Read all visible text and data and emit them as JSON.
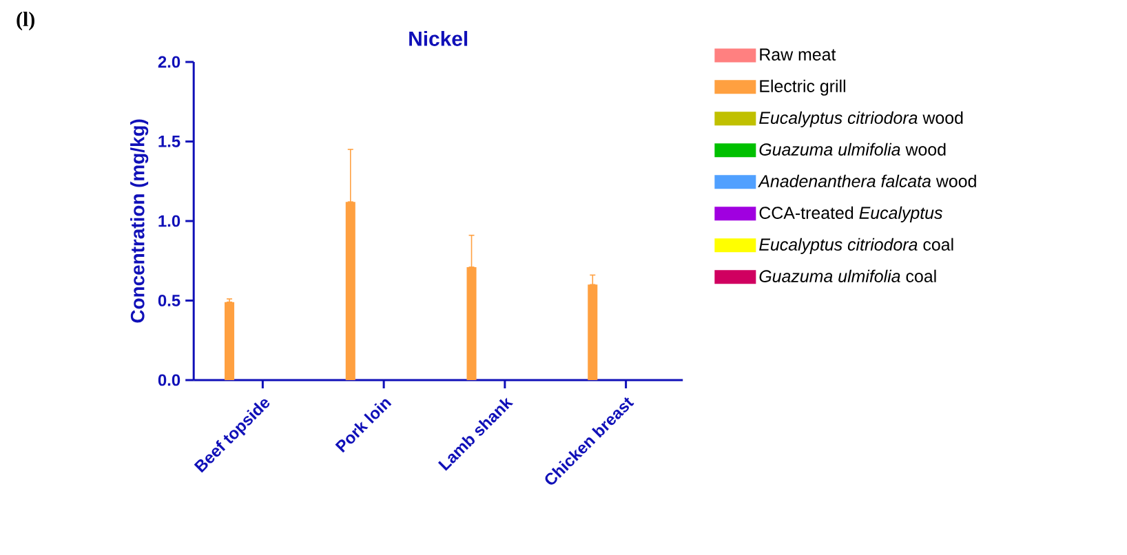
{
  "chart_data": {
    "type": "bar",
    "title": "Nickel",
    "ylabel": "Concentration (mg/kg)",
    "annotations": [
      "(l)"
    ],
    "categories": [
      "Beef topside",
      "Pork loin",
      "Lamb shank",
      "Chicken breast"
    ],
    "series": [
      {
        "name": "Raw meat",
        "color": "#ff8080",
        "values": [
          null,
          null,
          null,
          null
        ]
      },
      {
        "name": "Electric grill",
        "color": "#ffa040",
        "values": [
          0.49,
          1.12,
          0.71,
          0.6
        ],
        "errors": [
          [
            0.49,
            0.51
          ],
          [
            1.12,
            1.45
          ],
          [
            0.71,
            0.91
          ],
          [
            0.6,
            0.66
          ]
        ]
      },
      {
        "name": "*Eucalyptus citriodora* wood",
        "color": "#c0c000",
        "values": [
          null,
          null,
          null,
          null
        ]
      },
      {
        "name": "*Guazuma ulmifolia* wood",
        "color": "#00c000",
        "values": [
          null,
          null,
          null,
          null
        ]
      },
      {
        "name": "*Anadenanthera falcata* wood",
        "color": "#50a0ff",
        "values": [
          null,
          null,
          null,
          null
        ]
      },
      {
        "name": "CCA-treated *Eucalyptus*",
        "color": "#a000e0",
        "values": [
          null,
          null,
          null,
          null
        ]
      },
      {
        "name": "*Eucalyptus citriodora* coal",
        "color": "#ffff00",
        "values": [
          null,
          null,
          null,
          null
        ]
      },
      {
        "name": "*Guazuma ulmifolia* coal",
        "color": "#d00060",
        "values": [
          null,
          null,
          null,
          null
        ]
      }
    ],
    "ylim": [
      0,
      2
    ],
    "yticks": [
      {
        "value": 0,
        "label": "0.0"
      },
      {
        "value": 0.5,
        "label": "0.5"
      },
      {
        "value": 1,
        "label": "1.0"
      },
      {
        "value": 1.5,
        "label": "1.5"
      },
      {
        "value": 2,
        "label": "2.0"
      }
    ],
    "grid": false,
    "legend": "right"
  }
}
